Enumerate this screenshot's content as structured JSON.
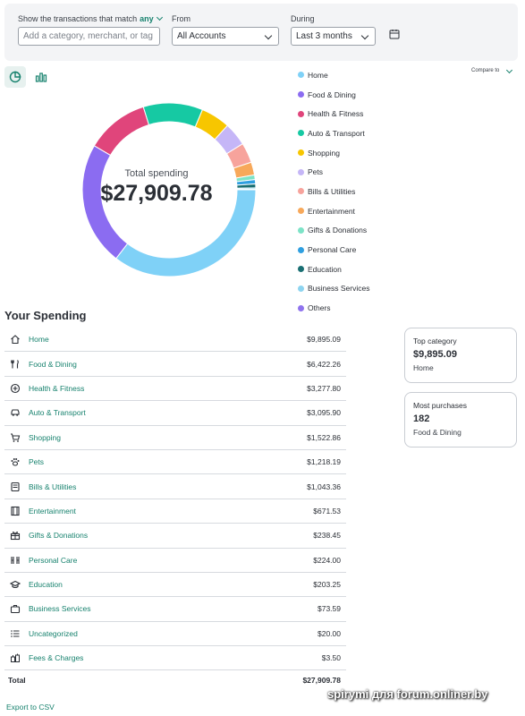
{
  "filters": {
    "match_label": "Show the transactions that match",
    "match_value": "any",
    "search_placeholder": "Add a category, merchant, or tag",
    "from_label": "From",
    "from_value": "All Accounts",
    "during_label": "During",
    "during_value": "Last 3 months"
  },
  "chart": {
    "caption": "Total spending",
    "total": "$27,909.78",
    "compare_label": "Compare to"
  },
  "legend": [
    {
      "label": "Home",
      "color": "#7fd1f7"
    },
    {
      "label": "Food & Dining",
      "color": "#8b6cf1"
    },
    {
      "label": "Health & Fitness",
      "color": "#e0457b"
    },
    {
      "label": "Auto & Transport",
      "color": "#16c9a3"
    },
    {
      "label": "Shopping",
      "color": "#f7c600"
    },
    {
      "label": "Pets",
      "color": "#c5b6f7"
    },
    {
      "label": "Bills & Utilities",
      "color": "#f7a39c"
    },
    {
      "label": "Entertainment",
      "color": "#f7a85a"
    },
    {
      "label": "Gifts & Donations",
      "color": "#7de3c7"
    },
    {
      "label": "Personal Care",
      "color": "#2f9fe0"
    },
    {
      "label": "Education",
      "color": "#1a6f73"
    },
    {
      "label": "Business Services",
      "color": "#8dd4f0"
    },
    {
      "label": "Others",
      "color": "#8f73ee"
    }
  ],
  "chart_data": {
    "type": "pie",
    "categories": [
      "Home",
      "Food & Dining",
      "Health & Fitness",
      "Auto & Transport",
      "Shopping",
      "Pets",
      "Bills & Utilities",
      "Entertainment",
      "Gifts & Donations",
      "Personal Care",
      "Education",
      "Business Services",
      "Others"
    ],
    "values": [
      9895.09,
      6422.26,
      3277.8,
      3095.9,
      1522.86,
      1218.19,
      1043.36,
      671.53,
      238.45,
      224.0,
      203.25,
      73.59,
      23.5
    ],
    "colors": [
      "#7fd1f7",
      "#8b6cf1",
      "#e0457b",
      "#16c9a3",
      "#f7c600",
      "#c5b6f7",
      "#f7a39c",
      "#f7a85a",
      "#7de3c7",
      "#2f9fe0",
      "#1a6f73",
      "#8dd4f0",
      "#8f73ee"
    ]
  },
  "spending": {
    "title": "Your Spending",
    "rows": [
      {
        "name": "Home",
        "amount": "$9,895.09",
        "icon": "home-icon"
      },
      {
        "name": "Food & Dining",
        "amount": "$6,422.26",
        "icon": "utensils-icon"
      },
      {
        "name": "Health & Fitness",
        "amount": "$3,277.80",
        "icon": "health-icon"
      },
      {
        "name": "Auto & Transport",
        "amount": "$3,095.90",
        "icon": "car-icon"
      },
      {
        "name": "Shopping",
        "amount": "$1,522.86",
        "icon": "cart-icon"
      },
      {
        "name": "Pets",
        "amount": "$1,218.19",
        "icon": "paw-icon"
      },
      {
        "name": "Bills & Utilities",
        "amount": "$1,043.36",
        "icon": "bill-icon"
      },
      {
        "name": "Entertainment",
        "amount": "$671.53",
        "icon": "film-icon"
      },
      {
        "name": "Gifts & Donations",
        "amount": "$238.45",
        "icon": "gift-icon"
      },
      {
        "name": "Personal Care",
        "amount": "$224.00",
        "icon": "scissors-icon"
      },
      {
        "name": "Education",
        "amount": "$203.25",
        "icon": "graduation-cap-icon"
      },
      {
        "name": "Business Services",
        "amount": "$73.59",
        "icon": "briefcase-icon"
      },
      {
        "name": "Uncategorized",
        "amount": "$20.00",
        "icon": "list-icon"
      },
      {
        "name": "Fees & Charges",
        "amount": "$3.50",
        "icon": "fees-icon"
      }
    ],
    "total_label": "Total",
    "total_amount": "$27,909.78",
    "export_label": "Export to CSV"
  },
  "cards": {
    "top_category": {
      "title": "Top category",
      "value": "$9,895.09",
      "sub": "Home"
    },
    "most_purchases": {
      "title": "Most purchases",
      "value": "182",
      "sub": "Food & Dining"
    }
  },
  "watermark": "spirymi для forum.onliner.by"
}
